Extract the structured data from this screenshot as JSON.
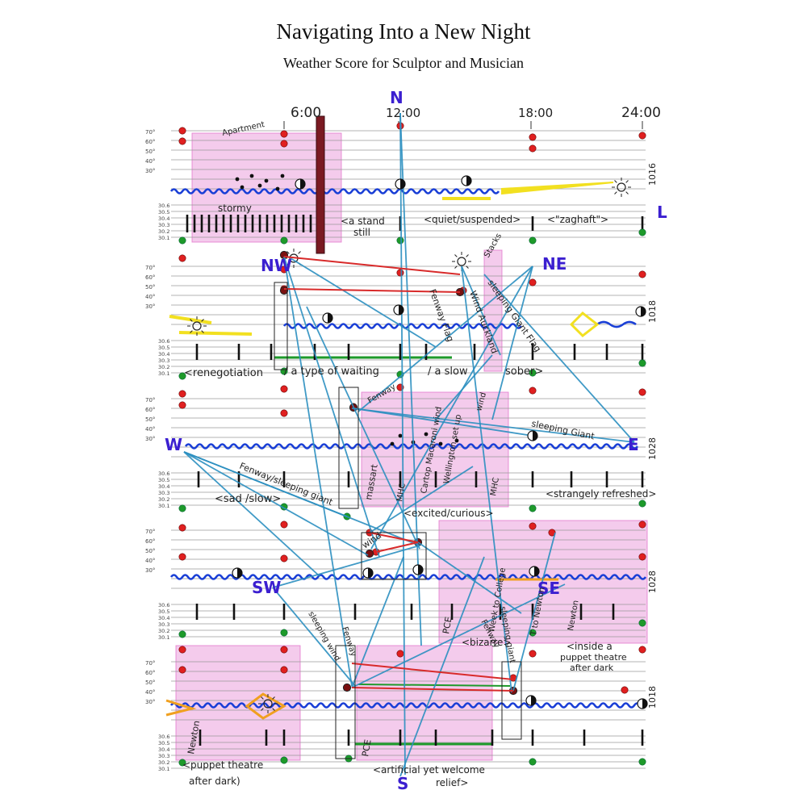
{
  "title": "Navigating Into a New Night",
  "subtitle": "Weather Score for Sculptor and Musician",
  "colors": {
    "staff_line": "#9a9a9a",
    "wave": "#1a3fd6",
    "pink_wash": "#e06ac8",
    "red_dot": "#e02020",
    "green_dot": "#1e9a2a",
    "route_line": "#2b8fc0",
    "route_red": "#d82a2a",
    "yellow": "#f2e020",
    "compass_blue": "#3b1fd0",
    "maroon_bar": "#7a1a22"
  },
  "time_labels": [
    "6:00",
    "12:00",
    "18:00",
    "24:00"
  ],
  "temp_scale": [
    "70°",
    "60°",
    "50°",
    "40°",
    "30°"
  ],
  "pressure_scale": [
    "30.6",
    "30.5",
    "30.4",
    "30.3",
    "30.2",
    "30.1"
  ],
  "compass": {
    "n": "N",
    "ne": "NE",
    "e": "E",
    "se": "SE",
    "s": "S",
    "sw": "SW",
    "w": "W",
    "nw": "NW",
    "l": "L"
  },
  "staves": {
    "s1": {
      "side_label": "1016",
      "annotations": [
        "Apartment",
        "stormy",
        "<a stand",
        "still",
        "<quiet/suspended>",
        "<\"zaghaft\">"
      ]
    },
    "s2": {
      "side_label": "1018",
      "annotations": [
        "<renegotiation",
        "/ a type of waiting",
        "/ a slow",
        "sober>",
        "Stacks",
        "Fenway Flag",
        "Wind Auckland",
        "sleeping Giant Flag"
      ]
    },
    "s3": {
      "side_label": "1028",
      "annotations": [
        "Fenway/sleeping giant",
        "<sad /slow>",
        "Fenway",
        "massart",
        "MHC",
        "Cartop Macaroni wind",
        "Wellington set up",
        "wind",
        "MHC",
        "<excited/curious>",
        "sleeping Giant",
        "<strangely refreshed>"
      ]
    },
    "s4": {
      "side_label": "1028",
      "annotations": [
        "wind",
        "PCE",
        "Week to College",
        "sleeping giant",
        "T to Newton",
        "Newton",
        "<bizarre>",
        "<inside a",
        "puppet theatre",
        "after dark"
      ]
    },
    "s5": {
      "side_label": "1018",
      "annotations": [
        "Newton",
        "sleeping wind",
        "Fenway",
        "PCE",
        "Fenway",
        "<puppet theatre",
        "after dark)",
        "<artificial yet welcome",
        "relief>"
      ]
    }
  }
}
